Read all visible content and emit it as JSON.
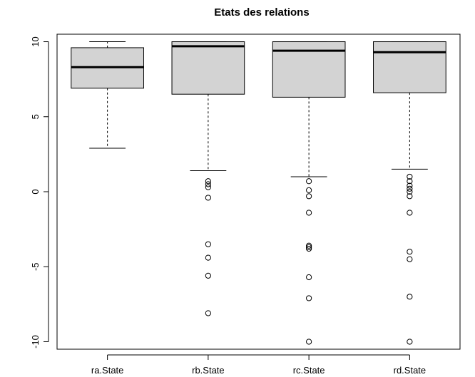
{
  "chart_data": {
    "type": "boxplot",
    "title": "Etats des relations",
    "xlabel": "",
    "ylabel": "",
    "ylim": [
      -10.5,
      10.5
    ],
    "yticks": [
      -10,
      -5,
      0,
      5,
      10
    ],
    "grid": false,
    "legend": "none",
    "box_color": "#d3d3d3",
    "line_color": "#000000",
    "categories": [
      "ra.State",
      "rb.State",
      "rc.State",
      "rd.State"
    ],
    "boxes": [
      {
        "name": "ra.State",
        "whisker_low": 2.9,
        "q1": 6.9,
        "median": 8.3,
        "q3": 9.6,
        "whisker_high": 10,
        "outliers": []
      },
      {
        "name": "rb.State",
        "whisker_low": 1.4,
        "q1": 6.5,
        "median": 9.7,
        "q3": 10,
        "whisker_high": 10,
        "outliers": [
          0.7,
          0.5,
          0.3,
          -0.4,
          -3.5,
          -4.4,
          -5.6,
          -8.1
        ]
      },
      {
        "name": "rc.State",
        "whisker_low": 1.0,
        "q1": 6.3,
        "median": 9.4,
        "q3": 10,
        "whisker_high": 10,
        "outliers": [
          0.7,
          0.1,
          -0.3,
          -1.4,
          -3.6,
          -3.7,
          -3.8,
          -5.7,
          -7.1,
          -10
        ]
      },
      {
        "name": "rd.State",
        "whisker_low": 1.5,
        "q1": 6.6,
        "median": 9.3,
        "q3": 10,
        "whisker_high": 10,
        "outliers": [
          1.0,
          0.7,
          0.4,
          0.2,
          0.0,
          -0.3,
          -1.4,
          -4.0,
          -4.5,
          -7.0,
          -10
        ]
      }
    ]
  }
}
